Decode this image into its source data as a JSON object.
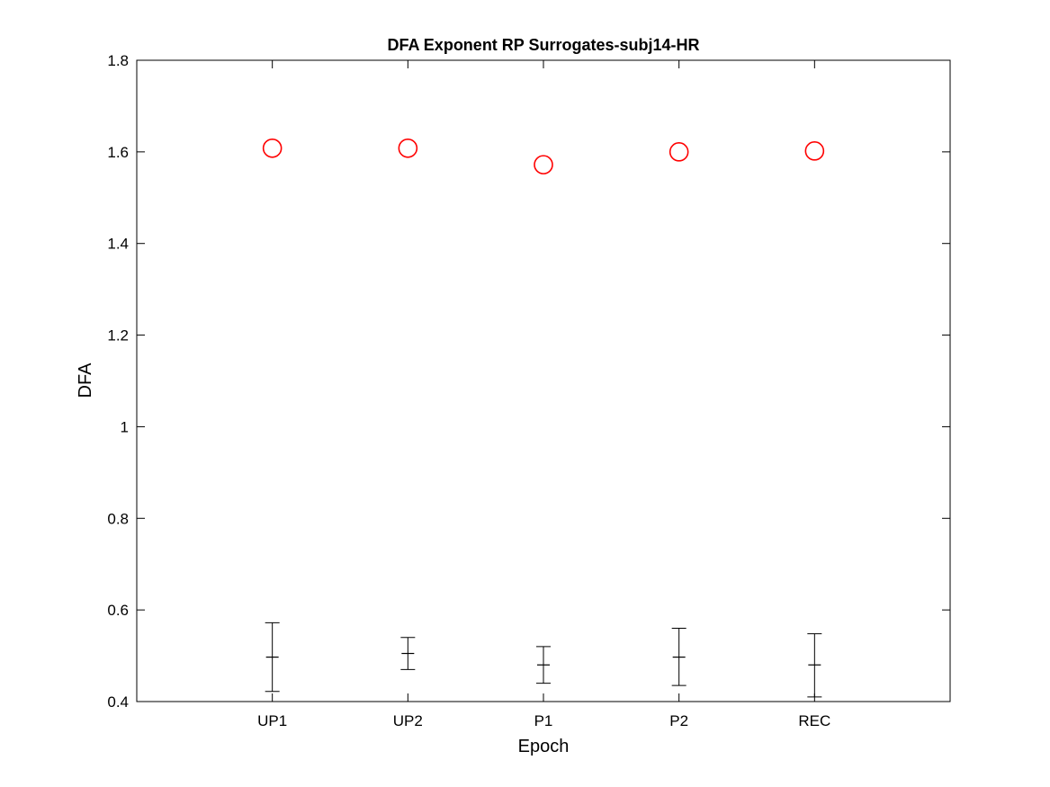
{
  "chart_data": {
    "type": "scatter",
    "title": "DFA Exponent RP Surrogates-subj14-HR",
    "xlabel": "Epoch",
    "ylabel": "DFA",
    "categories": [
      "UP1",
      "UP2",
      "P1",
      "P2",
      "REC"
    ],
    "xlim": [
      0,
      6
    ],
    "ylim": [
      0.4,
      1.8
    ],
    "yticks": [
      "0.4",
      "0.6",
      "0.8",
      "1",
      "1.2",
      "1.4",
      "1.6",
      "1.8"
    ],
    "grid": false,
    "legend": "none",
    "series": [
      {
        "marker": "circle",
        "color": "#ff0000",
        "values": [
          1.608,
          1.608,
          1.572,
          1.6,
          1.602
        ]
      },
      {
        "marker": "plus-with-errorbar",
        "color": "#000000",
        "values": [
          0.497,
          0.505,
          0.48,
          0.497,
          0.48
        ],
        "lower": [
          0.422,
          0.47,
          0.44,
          0.435,
          0.41
        ],
        "upper": [
          0.572,
          0.54,
          0.52,
          0.56,
          0.548
        ]
      }
    ]
  }
}
